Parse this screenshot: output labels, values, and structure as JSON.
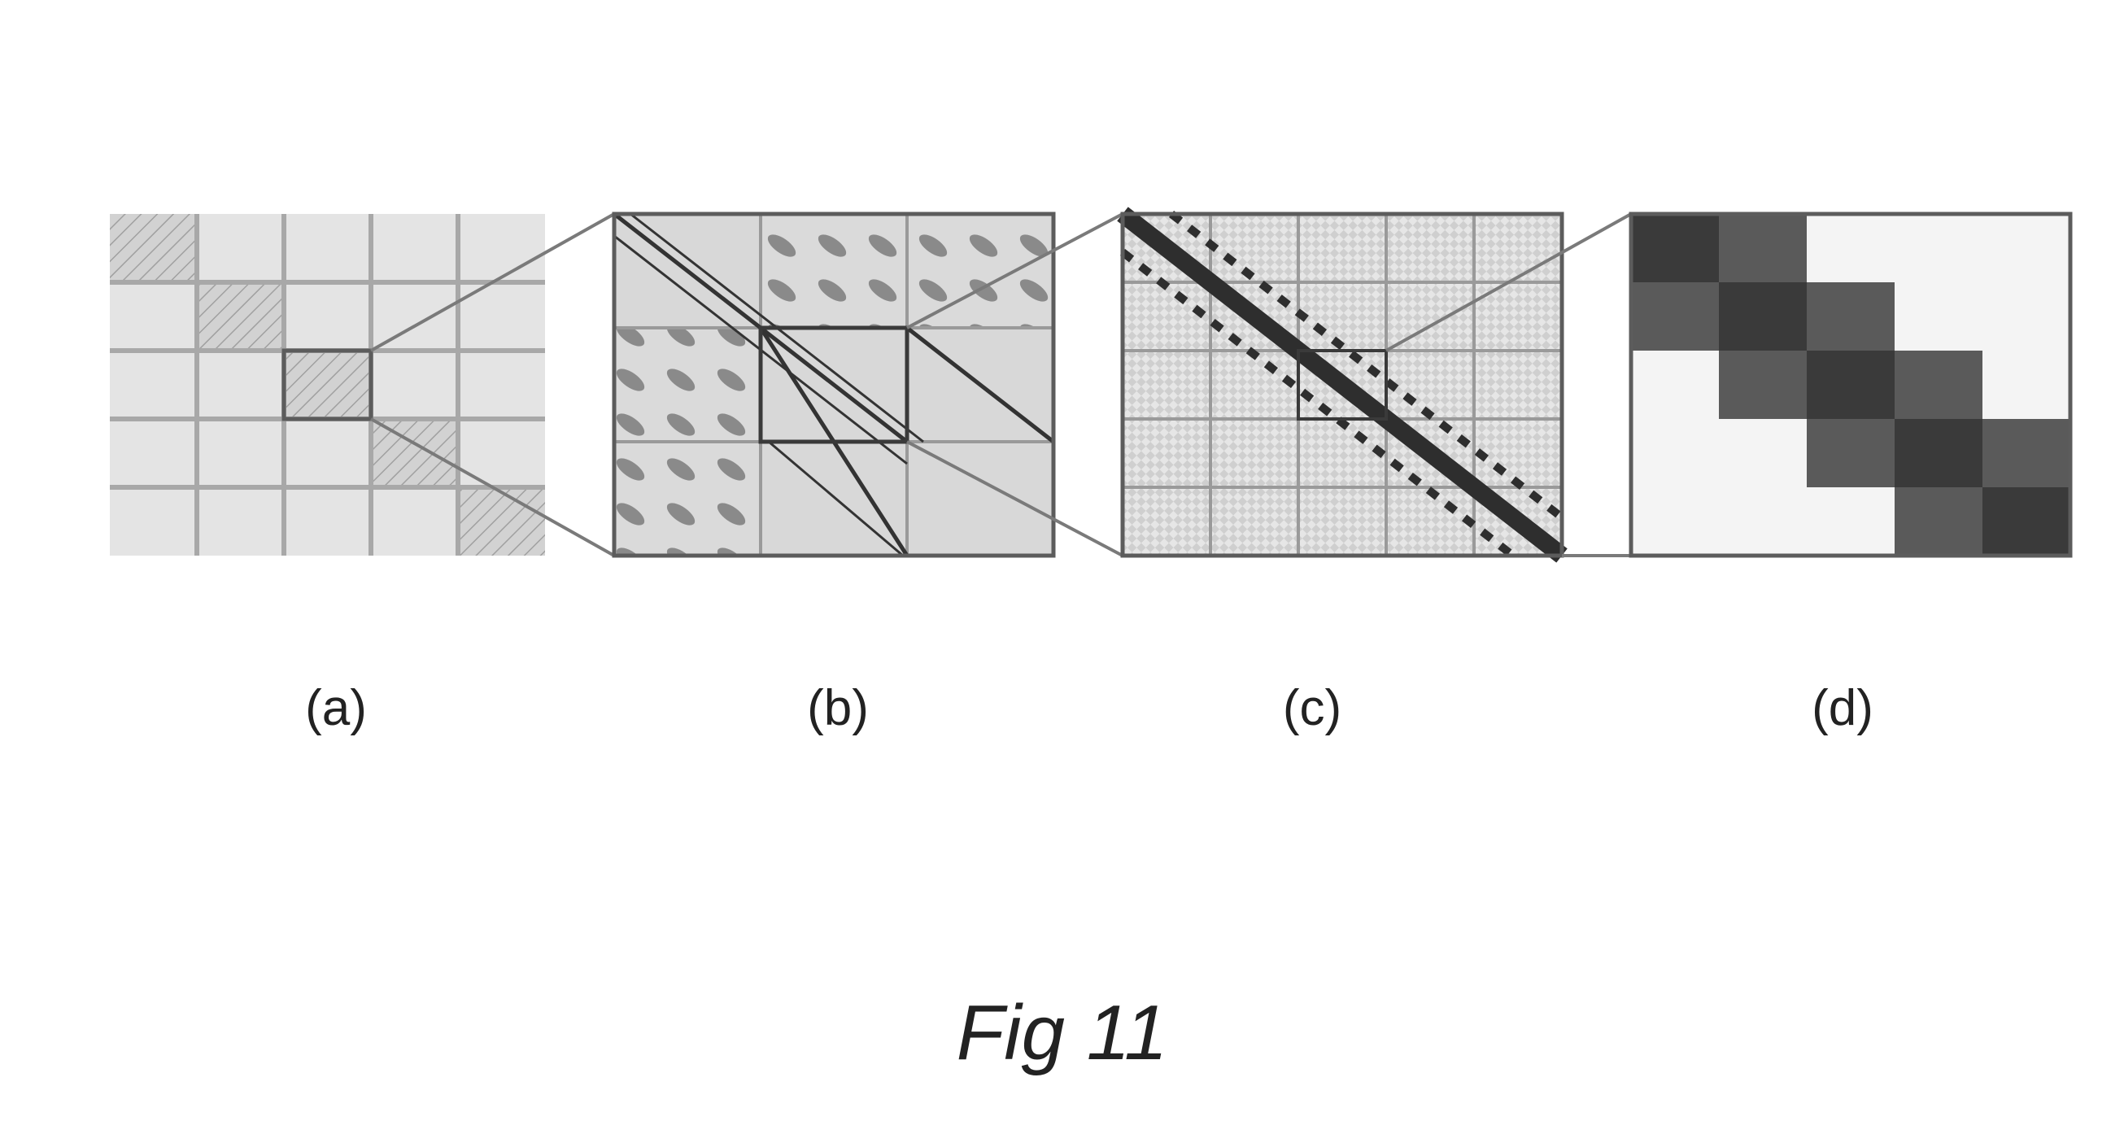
{
  "figure": {
    "caption": "Fig 11",
    "panels": [
      {
        "label": "(a)",
        "grid": 5,
        "detail": "diagonal block-hatched matrix with highlighted center block"
      },
      {
        "label": "(b)",
        "grid": 3,
        "detail": "zoomed block with diagonal lines and oval patterns"
      },
      {
        "label": "(c)",
        "grid": 5,
        "detail": "zoomed block with dark diagonal band"
      },
      {
        "label": "(d)",
        "grid": 5,
        "detail": "block-tridiagonal shaded matrix"
      }
    ],
    "colors": {
      "paper": "#ffffff",
      "light_fill": "#dcdcdc",
      "grid_line": "#9a9a9a",
      "border": "#5c5c5c",
      "dark": "#3a3a3a",
      "mid_dark": "#5a5a5a"
    }
  }
}
